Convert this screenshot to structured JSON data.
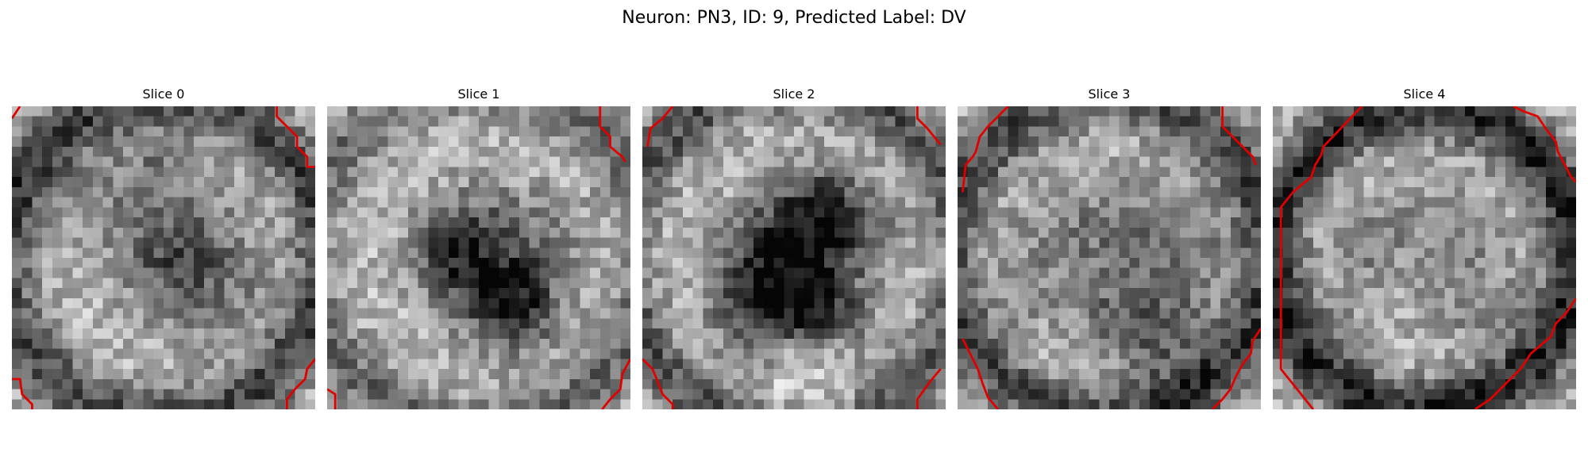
{
  "figure": {
    "title": "Neuron: PN3, ID: 9, Predicted Label: DV"
  },
  "panels": [
    {
      "title": "Slice 0"
    },
    {
      "title": "Slice 1"
    },
    {
      "title": "Slice 2"
    },
    {
      "title": "Slice 3"
    },
    {
      "title": "Slice 4"
    }
  ],
  "colors": {
    "contour": "#e00000",
    "background": "#ffffff"
  }
}
